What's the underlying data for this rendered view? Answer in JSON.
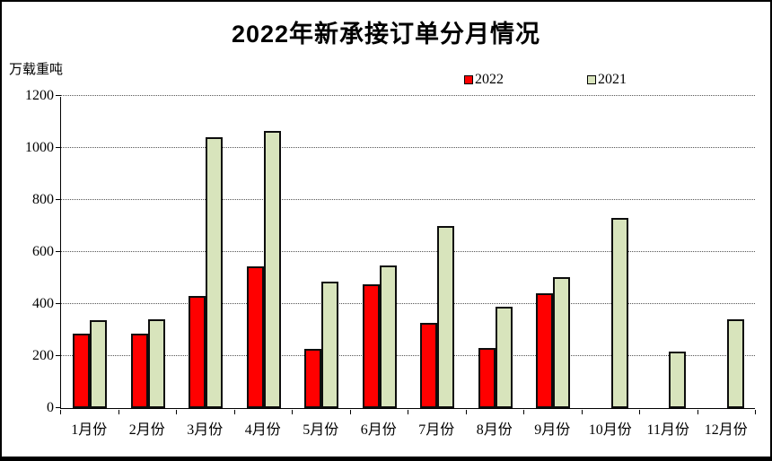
{
  "window": {
    "kind": "excel-style-chart"
  },
  "chart_data": {
    "type": "bar",
    "title": "2022年新承接订单分月情况",
    "ylabel": "万载重吨",
    "xlabel": "",
    "categories": [
      "1月份",
      "2月份",
      "3月份",
      "4月份",
      "5月份",
      "6月份",
      "7月份",
      "8月份",
      "9月份",
      "10月份",
      "11月份",
      "12月份"
    ],
    "series": [
      {
        "name": "2022",
        "color": "#FF0000",
        "values": [
          285,
          285,
          430,
          545,
          228,
          475,
          328,
          232,
          440,
          null,
          null,
          null
        ]
      },
      {
        "name": "2021",
        "color": "#D8E4BC",
        "values": [
          338,
          342,
          1040,
          1066,
          488,
          550,
          700,
          390,
          505,
          730,
          218,
          340
        ]
      }
    ],
    "ylim": [
      0,
      1200
    ],
    "yticks": [
      0,
      200,
      400,
      600,
      800,
      1000,
      1200
    ],
    "grid": "horizontal-dotted",
    "legend_position": "top-center",
    "legend_entries": [
      "2022",
      "2021"
    ],
    "colors": {
      "bar_border": "#0d0d0d",
      "axis": "#000000",
      "gridline": "#555555",
      "background": "#ffffff"
    }
  }
}
